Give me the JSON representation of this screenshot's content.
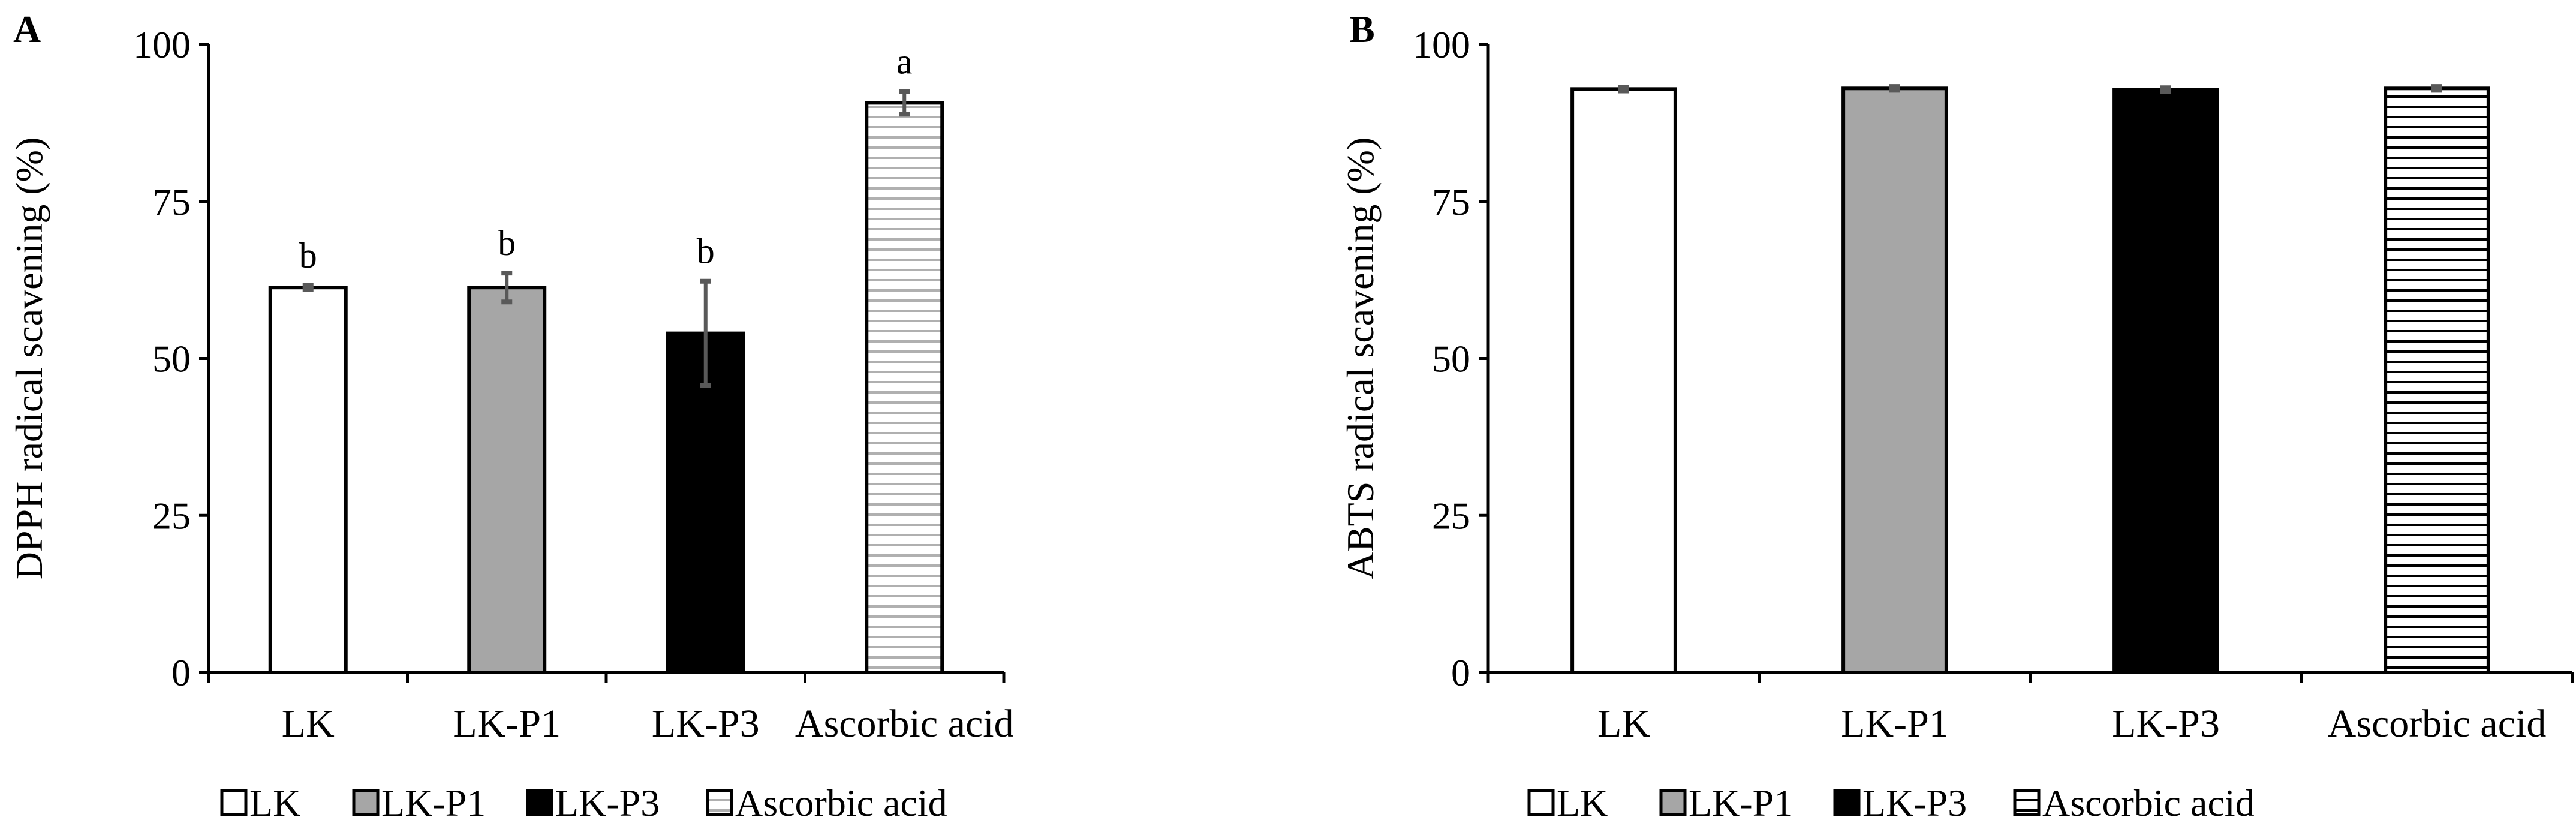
{
  "chart_data": [
    {
      "type": "bar",
      "panel_label": "A",
      "ylabel": "DPPH radical scavening (%)",
      "ylim": [
        0,
        100
      ],
      "yticks": [
        0,
        25,
        50,
        75,
        100
      ],
      "categories": [
        "LK",
        "LK-P1",
        "LK-P3",
        "Ascorbic acid"
      ],
      "values": [
        61.3,
        61.3,
        54.0,
        90.7
      ],
      "errors": [
        0.3,
        2.3,
        8.3,
        1.8
      ],
      "significance": [
        "b",
        "b",
        "b",
        "a"
      ],
      "legend": [
        "LK",
        "LK-P1",
        "LK-P3",
        "Ascorbic acid"
      ],
      "legend_position": "bottom",
      "grid": false
    },
    {
      "type": "bar",
      "panel_label": "B",
      "ylabel": "ABTS radical scavening (%)",
      "ylim": [
        0,
        100
      ],
      "yticks": [
        0,
        25,
        50,
        75,
        100
      ],
      "categories": [
        "LK",
        "LK-P1",
        "LK-P3",
        "Ascorbic acid"
      ],
      "values": [
        92.9,
        93.0,
        92.8,
        93.0
      ],
      "errors": [
        0.3,
        0.3,
        0.3,
        0.3
      ],
      "significance": [],
      "legend": [
        "LK",
        "LK-P1",
        "LK-P3",
        "Ascorbic acid"
      ],
      "legend_position": "bottom",
      "grid": false
    }
  ],
  "fills": [
    "#ffffff",
    "#a6a6a6",
    "#000000",
    "hatch-horizontal"
  ],
  "error_bar_color": "#595959"
}
